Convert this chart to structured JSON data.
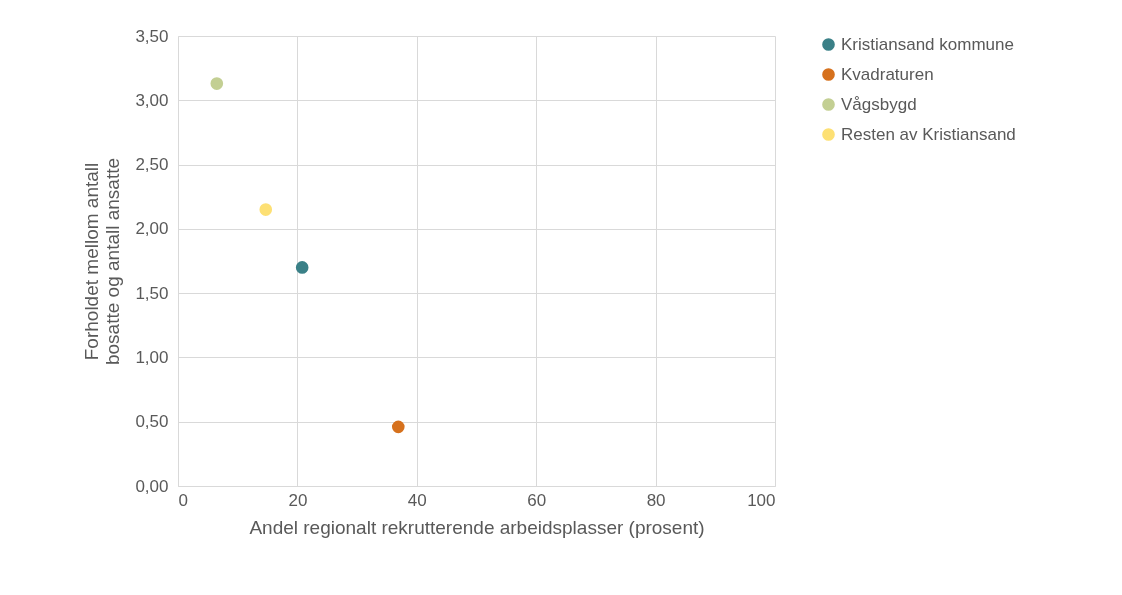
{
  "chart_data": {
    "type": "scatter",
    "xlabel": "Andel regionalt rekrutterende arbeidsplasser (prosent)",
    "ylabel": "Forholdet mellom antall bosatte og antall ansatte",
    "series": [
      {
        "name": "Kristiansand kommune",
        "color": "#3a8087",
        "x": [
          20.8
        ],
        "values": [
          1.7
        ]
      },
      {
        "name": "Kvadraturen",
        "color": "#d6711d",
        "x": [
          36.9
        ],
        "values": [
          0.46
        ]
      },
      {
        "name": "Vågsbygd",
        "color": "#c3cf93",
        "x": [
          6.5
        ],
        "values": [
          3.13
        ]
      },
      {
        "name": "Resten av Kristiansand",
        "color": "#fde074",
        "x": [
          14.7
        ],
        "values": [
          2.15
        ]
      }
    ],
    "xlim": [
      0,
      100
    ],
    "xticks": [
      0,
      20,
      40,
      60,
      80,
      100
    ],
    "ylim": [
      0,
      3.5
    ],
    "yticks": [
      {
        "value": 0,
        "label": "0,00"
      },
      {
        "value": 0.5,
        "label": "0,50"
      },
      {
        "value": 1,
        "label": "1,00"
      },
      {
        "value": 1.5,
        "label": "1,50"
      },
      {
        "value": 2,
        "label": "2,00"
      },
      {
        "value": 2.5,
        "label": "2,50"
      },
      {
        "value": 3,
        "label": "3,00"
      },
      {
        "value": 3.5,
        "label": "3,50"
      }
    ],
    "grid": true,
    "legend": "right",
    "marker": "circle"
  }
}
